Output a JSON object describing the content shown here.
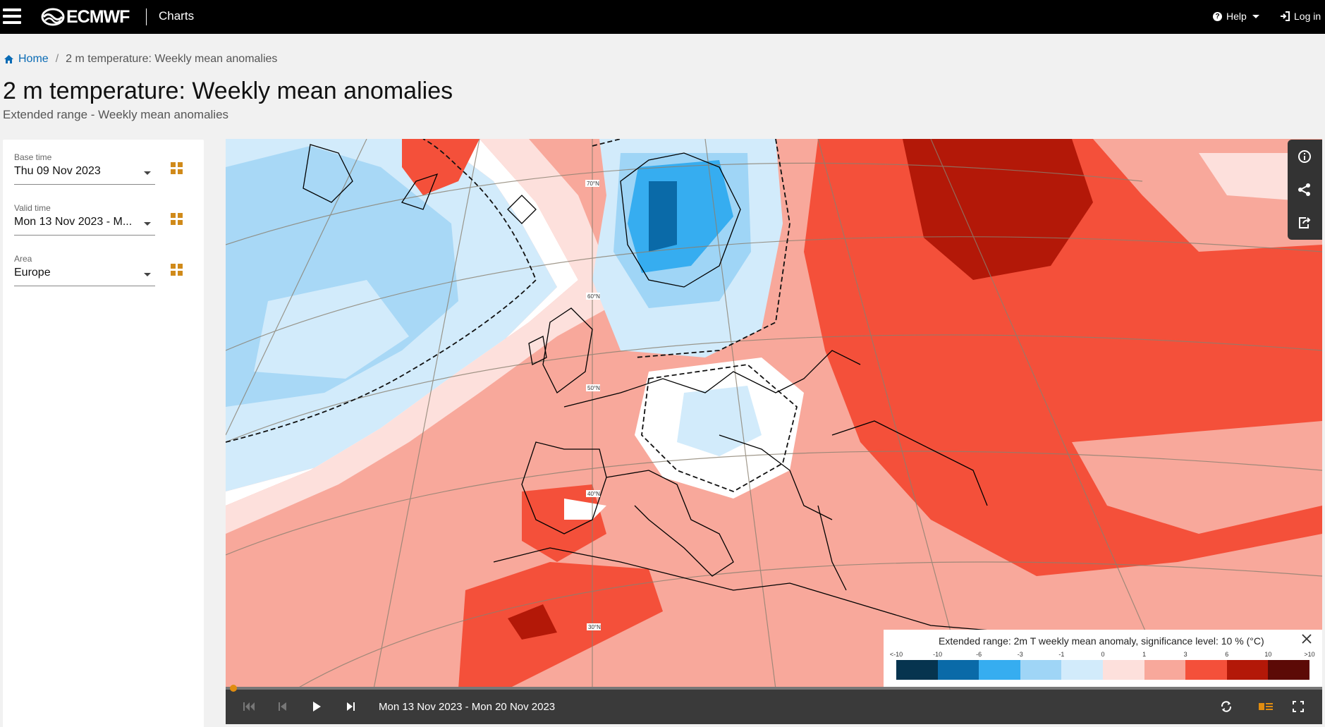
{
  "header": {
    "brand": "ECMWF",
    "app_name": "Charts",
    "help_label": "Help",
    "login_label": "Log in"
  },
  "breadcrumb": {
    "home": "Home",
    "current": "2 m temperature: Weekly mean anomalies"
  },
  "page": {
    "title": "2 m temperature: Weekly mean anomalies",
    "subtitle": "Extended range - Weekly mean anomalies"
  },
  "sidebar": {
    "fields": [
      {
        "label": "Base time",
        "value": "Thu 09 Nov 2023"
      },
      {
        "label": "Valid time",
        "value": "Mon 13 Nov 2023 - M..."
      },
      {
        "label": "Area",
        "value": "Europe"
      }
    ]
  },
  "map": {
    "graticule_labels": [
      "70°N",
      "60°N",
      "50°N",
      "40°N",
      "30°N"
    ]
  },
  "legend": {
    "title": "Extended range: 2m T weekly mean anomaly, significance level: 10 % (°C)",
    "ticks": [
      "<-10",
      "-10",
      "-6",
      "-3",
      "-1",
      "0",
      "1",
      "3",
      "6",
      "10",
      ">10"
    ],
    "colors": [
      "#06344f",
      "#0a6aa8",
      "#36adf0",
      "#9fd5f6",
      "#d2ebfb",
      "#fde0dc",
      "#f8a89b",
      "#f4503a",
      "#b31808",
      "#5c0a06"
    ]
  },
  "playback": {
    "date_range": "Mon 13 Nov 2023 - Mon 20 Nov 2023",
    "position_fraction": 0.0
  },
  "icons": {
    "menu": "hamburger-icon",
    "help": "help-circle-icon",
    "login": "login-icon",
    "info": "info-icon",
    "share": "share-icon",
    "export": "export-icon",
    "grid": "grid-icon",
    "first": "skip-first-icon",
    "prev": "step-back-icon",
    "play": "play-icon",
    "next": "step-forward-icon",
    "loop": "loop-icon",
    "layers": "layers-icon",
    "fullscreen": "fullscreen-icon",
    "close": "close-icon"
  }
}
